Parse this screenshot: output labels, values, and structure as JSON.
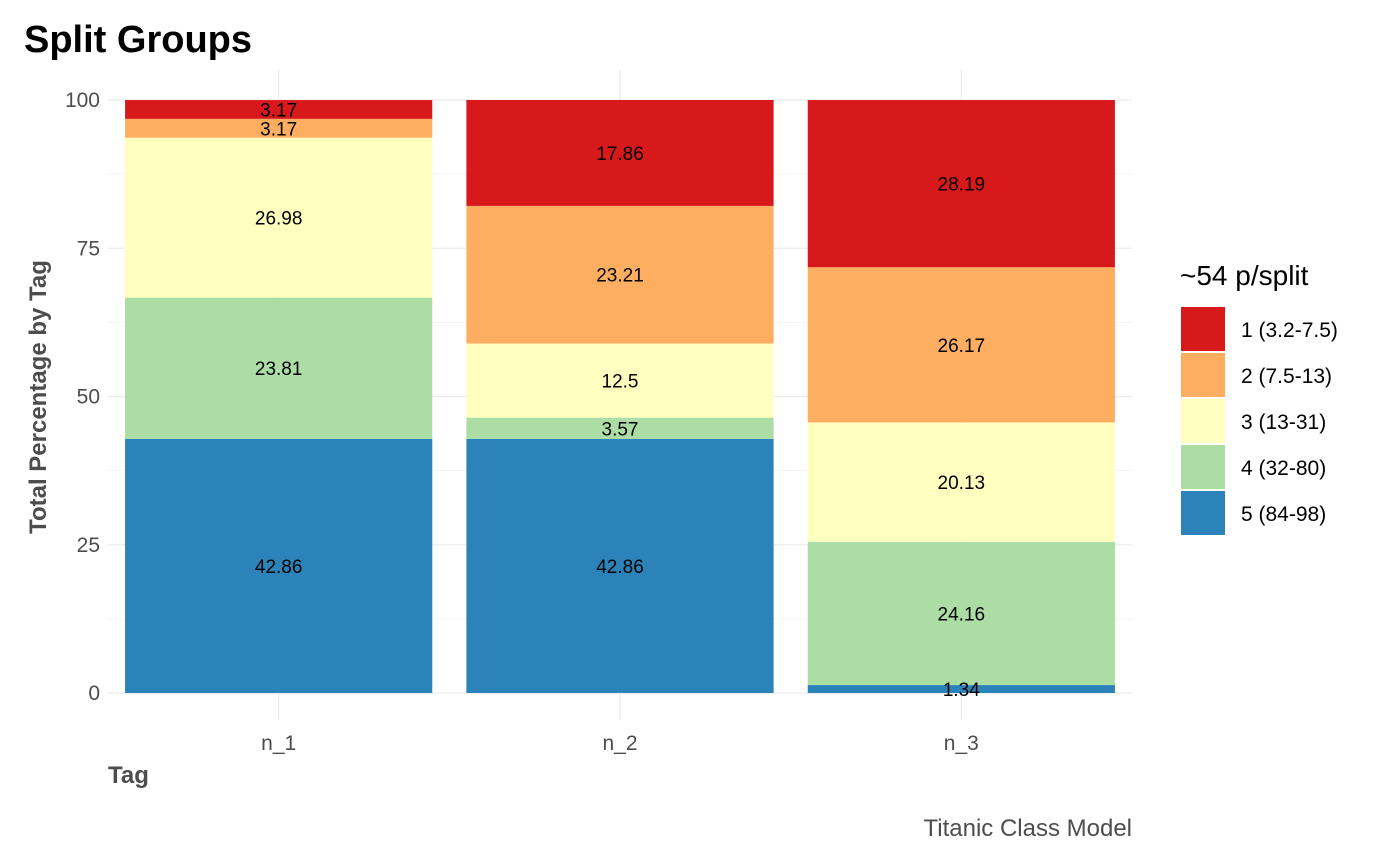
{
  "chart_data": {
    "type": "bar",
    "stacked": true,
    "title": "Split Groups",
    "xlabel": "Tag",
    "ylabel": "Total Percentage by Tag",
    "caption": "Titanic Class Model",
    "categories": [
      "n_1",
      "n_2",
      "n_3"
    ],
    "ylim": [
      0,
      100
    ],
    "yticks": [
      0,
      25,
      50,
      75,
      100
    ],
    "grid": true,
    "legend": {
      "title": "~54 p/split",
      "position": "right"
    },
    "series": [
      {
        "name": "1 (3.2-7.5)",
        "color": "#d7191c",
        "values": [
          3.17,
          17.86,
          28.19
        ]
      },
      {
        "name": "2 (7.5-13)",
        "color": "#fdae61",
        "values": [
          3.17,
          23.21,
          26.17
        ]
      },
      {
        "name": "3 (13-31)",
        "color": "#ffffbf",
        "values": [
          26.98,
          12.5,
          20.13
        ]
      },
      {
        "name": "4 (32-80)",
        "color": "#abdda4",
        "values": [
          23.81,
          3.57,
          24.16
        ]
      },
      {
        "name": "5 (84-98)",
        "color": "#2b83ba",
        "values": [
          42.86,
          42.86,
          1.34
        ]
      }
    ]
  }
}
